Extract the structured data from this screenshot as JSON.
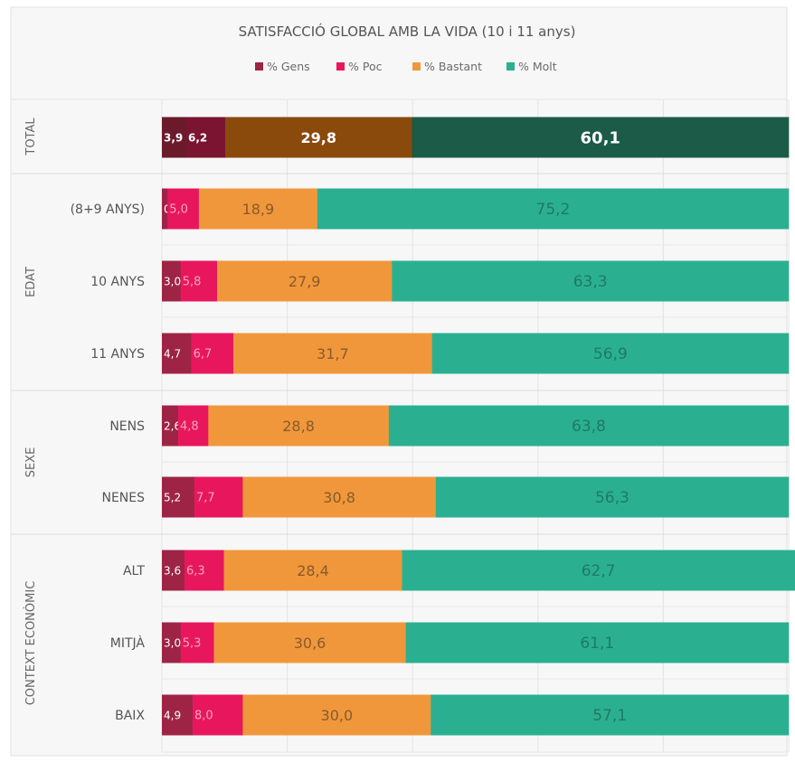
{
  "chart_data": {
    "type": "bar",
    "orientation": "horizontal",
    "stacked": true,
    "title": "SATISFACCIÓ GLOBAL AMB LA VIDA (10 i 11 anys)",
    "legend_position": "top",
    "xlim": [
      0,
      100
    ],
    "grid": true,
    "groups": [
      {
        "label": "TOTAL",
        "categories": [
          ""
        ]
      },
      {
        "label": "EDAT",
        "categories": [
          "(8+9 ANYS)",
          "10 ANYS",
          "11 ANYS"
        ]
      },
      {
        "label": "SEXE",
        "categories": [
          "NENS",
          "NENES"
        ]
      },
      {
        "label": "CONTEXT ECONÒMIC",
        "categories": [
          "ALT",
          "MITJÀ",
          "BAIX"
        ]
      }
    ],
    "categories": [
      "TOTAL",
      "(8+9 ANYS)",
      "10 ANYS",
      "11 ANYS",
      "NENS",
      "NENES",
      "ALT",
      "MITJÀ",
      "BAIX"
    ],
    "series": [
      {
        "name": "% Gens",
        "color": "#9e2446",
        "total_color": "#6b1a2c",
        "values": [
          3.9,
          0.9,
          3.0,
          4.7,
          2.6,
          5.2,
          3.6,
          3.0,
          4.9
        ],
        "labels": [
          "3,9",
          "0,9",
          "3,0",
          "4,7",
          "2,6",
          "5,2",
          "3,6",
          "3,0",
          "4,9"
        ]
      },
      {
        "name": "% Poc",
        "color": "#e8175d",
        "total_color": "#7a1430",
        "values": [
          6.2,
          5.0,
          5.8,
          6.7,
          4.8,
          7.7,
          6.3,
          5.3,
          8.0
        ],
        "labels": [
          "6,2",
          "5,0",
          "5,8",
          "6,7",
          "4,8",
          "7,7",
          "6,3",
          "5,3",
          "8,0"
        ]
      },
      {
        "name": "% Bastant",
        "color": "#f0973c",
        "total_color": "#8a4a0c",
        "values": [
          29.8,
          18.9,
          27.9,
          31.7,
          28.8,
          30.8,
          28.4,
          30.6,
          30.0
        ],
        "labels": [
          "29,8",
          "18,9",
          "27,9",
          "31,7",
          "28,8",
          "30,8",
          "28,4",
          "30,6",
          "30,0"
        ]
      },
      {
        "name": "% Molt",
        "color": "#2ab090",
        "total_color": "#1b5b48",
        "values": [
          60.1,
          75.2,
          63.3,
          56.9,
          63.8,
          56.3,
          62.7,
          61.1,
          57.1
        ],
        "labels": [
          "60,1",
          "75,2",
          "63,3",
          "56,9",
          "63,8",
          "56,3",
          "62,7",
          "61,1",
          "57,1"
        ]
      }
    ]
  }
}
